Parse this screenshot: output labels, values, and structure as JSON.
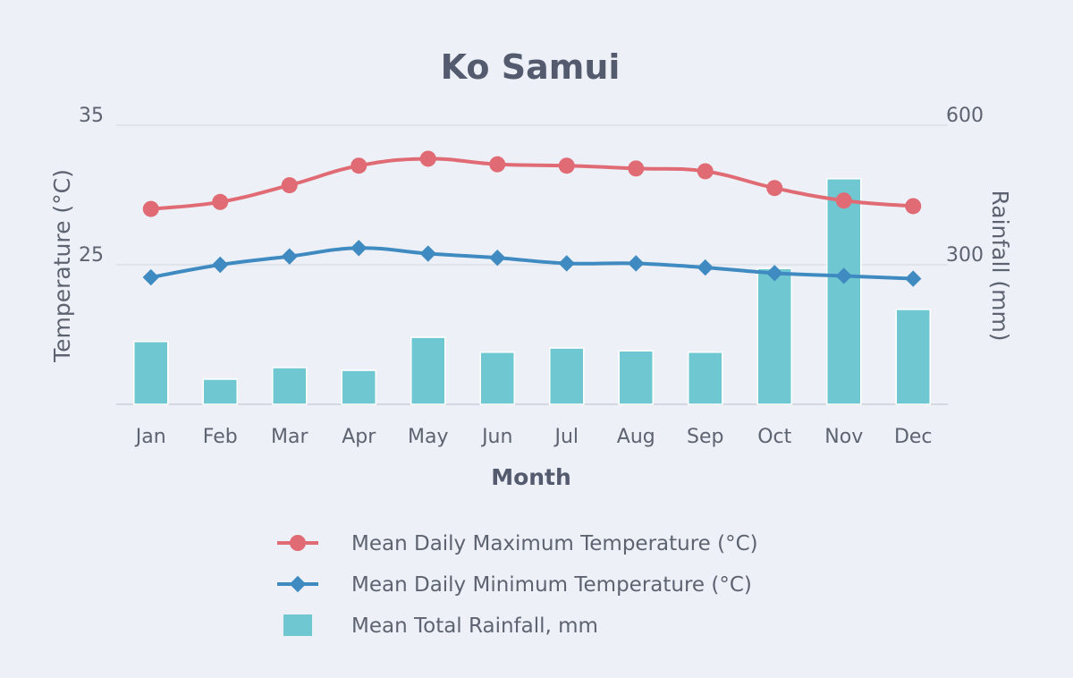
{
  "chart_data": {
    "type": "bar+line",
    "title": "Ko Samui",
    "xlabel": "Month",
    "ylabel_left": "Temperature (°C)",
    "ylabel_right": "Rainfall (mm)",
    "ylim_left": [
      15,
      35
    ],
    "ylim_right": [
      0,
      600
    ],
    "yticks_left": [
      "35",
      "25"
    ],
    "yticks_left_values": [
      35,
      25
    ],
    "yticks_right": [
      "600",
      "300"
    ],
    "yticks_right_values": [
      600,
      300
    ],
    "grid": true,
    "legend_position": "bottom",
    "categories": [
      "Jan",
      "Feb",
      "Mar",
      "Apr",
      "May",
      "Jun",
      "Jul",
      "Aug",
      "Sep",
      "Oct",
      "Nov",
      "Dec"
    ],
    "series": [
      {
        "name": "Mean Daily Maximum Temperature (°C)",
        "type": "line",
        "axis": "left",
        "marker": "circle",
        "color": "#e06b74",
        "values": [
          29.0,
          29.5,
          30.7,
          32.1,
          32.6,
          32.2,
          32.1,
          31.9,
          31.7,
          30.5,
          29.6,
          29.2
        ]
      },
      {
        "name": "Mean Daily Minimum Temperature (°C)",
        "type": "line",
        "axis": "left",
        "marker": "diamond",
        "color": "#3f8bc1",
        "values": [
          24.1,
          25.0,
          25.6,
          26.2,
          25.8,
          25.5,
          25.1,
          25.1,
          24.8,
          24.4,
          24.2,
          24.0
        ]
      },
      {
        "name": "Mean Total Rainfall, mm",
        "type": "bar",
        "axis": "right",
        "color": "#6fc8d1",
        "values": [
          135,
          54,
          79,
          73,
          144,
          112,
          121,
          115,
          112,
          292,
          485,
          204
        ]
      }
    ]
  }
}
